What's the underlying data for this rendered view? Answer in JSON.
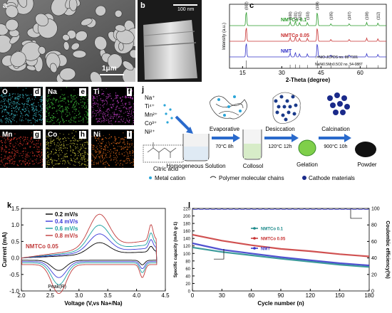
{
  "panels": {
    "a": {
      "label": "a",
      "scalebar": "1μm"
    },
    "b": {
      "label": "b",
      "scalebar": "100 nm"
    },
    "c": {
      "label": "c"
    },
    "d": {
      "label": "d"
    },
    "e": {
      "label": "e"
    },
    "f": {
      "label": "f"
    },
    "g": {
      "label": "g"
    },
    "h": {
      "label": "h"
    },
    "i": {
      "label": "i"
    },
    "j": {
      "label": "j"
    },
    "k": {
      "label": "k"
    },
    "l": {
      "label": "l"
    }
  },
  "eds_maps": [
    {
      "element": "O",
      "panel": "d",
      "color": "#3fc4d2"
    },
    {
      "element": "Na",
      "panel": "e",
      "color": "#3fbf3a"
    },
    {
      "element": "Ti",
      "panel": "f",
      "color": "#c13fc6"
    },
    {
      "element": "Mn",
      "panel": "g",
      "color": "#e0382c"
    },
    {
      "element": "Co",
      "panel": "h",
      "color": "#c6c23a"
    },
    {
      "element": "Ni",
      "panel": "i",
      "color": "#e06a1c"
    }
  ],
  "synthesis": {
    "ions": [
      "Na⁺",
      "Ti⁴⁺",
      "Mn²⁺",
      "Co³⁺",
      "Ni²⁺"
    ],
    "citric_acid": "Citric acid",
    "homogeneous": "Homogeneous\nSolution",
    "evaporative": "Evaporative",
    "evap_cond": "70°C  8h",
    "desiccation": "Desiccation",
    "desic_cond": "120°C  12h",
    "collosol": "Collosol",
    "gelation": "Gelation",
    "calcination": "Calcination",
    "calc_cond": "900°C  10h",
    "powder": "Powder",
    "legend": {
      "metal_cation": "Metal cation",
      "polymer": "Polymer molecular chains",
      "cathode": "Cathode materials"
    }
  },
  "chart_data": [
    {
      "panel": "c",
      "type": "line",
      "xlabel": "2-Theta (degree)",
      "ylabel": "Intensity (a.u.)",
      "xlim": [
        10,
        70
      ],
      "xticks": [
        15,
        30,
        45,
        60
      ],
      "series": [
        {
          "name": "NMTCo 0.1",
          "color": "#2a9a2a"
        },
        {
          "name": "NMTCo 0.05",
          "color": "#c83232"
        },
        {
          "name": "NMT",
          "color": "#3232c8"
        }
      ],
      "peaks": [
        {
          "x": 16.4,
          "label": "(002)",
          "h": 1.0
        },
        {
          "x": 33.2,
          "label": "(100)",
          "h": 0.25
        },
        {
          "x": 35.2,
          "label": "(101)",
          "h": 0.3
        },
        {
          "x": 36.8,
          "label": "(102)",
          "h": 0.2
        },
        {
          "x": 39.8,
          "label": "(103)",
          "h": 0.2
        },
        {
          "x": 43.6,
          "label": "(104)",
          "h": 0.95
        },
        {
          "x": 48.8,
          "label": "(105)",
          "h": 0.12
        },
        {
          "x": 55.8,
          "label": "(107)",
          "h": 0.12
        },
        {
          "x": 62.5,
          "label": "(108)",
          "h": 0.2
        },
        {
          "x": 66.8,
          "label": "(112)",
          "h": 0.16
        }
      ],
      "references": [
        "↓=NiO-JCPDS no. 89-7101",
        "NaNi0.5Mn0.5O2 no. 54-0887"
      ]
    },
    {
      "panel": "k",
      "type": "line",
      "xlabel": "Voltage (V,vs Na+/Na)",
      "ylabel": "Current (mA)",
      "xlim": [
        2.0,
        4.5
      ],
      "ylim": [
        -1.0,
        1.5
      ],
      "xticks": [
        2.0,
        2.5,
        3.0,
        3.5,
        4.0,
        4.5
      ],
      "yticks": [
        -1.0,
        -0.5,
        0.0,
        0.5,
        1.0,
        1.5
      ],
      "annotation": "NMTCo 0.05",
      "peak_label": "Peak(R)",
      "series": [
        {
          "name": "0.2 mV/s",
          "color": "#000000",
          "scale": 0.35
        },
        {
          "name": "0.4 mV/s",
          "color": "#3a3ad8",
          "scale": 0.55
        },
        {
          "name": "0.6 mV/s",
          "color": "#1aa0a0",
          "scale": 0.75
        },
        {
          "name": "0.8 mV/s",
          "color": "#c03a3a",
          "scale": 1.0
        }
      ]
    },
    {
      "panel": "l",
      "type": "line",
      "xlabel": "Cycle number (n)",
      "ylabel": "Specific capacity (mAh g-1)",
      "y2label": "Coulombic efficiency(%)",
      "xlim": [
        0,
        180
      ],
      "ylim": [
        0,
        220
      ],
      "y2lim": [
        0,
        100
      ],
      "xticks": [
        0,
        30,
        60,
        90,
        120,
        150,
        180
      ],
      "yticks": [
        0,
        20,
        40,
        60,
        80,
        100,
        120,
        140,
        160,
        180,
        200,
        220
      ],
      "y2ticks": [
        0,
        20,
        40,
        60,
        80,
        100
      ],
      "series": [
        {
          "name": "NMTCo 0.1",
          "color": "#1a8a8a",
          "x": [
            0,
            30,
            60,
            90,
            120,
            150,
            180
          ],
          "y": [
            116,
            104,
            95,
            86,
            78,
            70,
            64
          ]
        },
        {
          "name": "NMTCo 0.05",
          "color": "#c83232",
          "x": [
            0,
            30,
            60,
            90,
            120,
            150,
            180
          ],
          "y": [
            150,
            134,
            122,
            112,
            106,
            98,
            92
          ]
        },
        {
          "name": "NMT",
          "color": "#3232c8",
          "x": [
            0,
            30,
            60,
            90,
            120,
            150,
            180
          ],
          "y": [
            127,
            110,
            100,
            90,
            82,
            74,
            68
          ]
        }
      ],
      "efficiency": {
        "value": 99,
        "color": "#3232c8"
      }
    }
  ]
}
